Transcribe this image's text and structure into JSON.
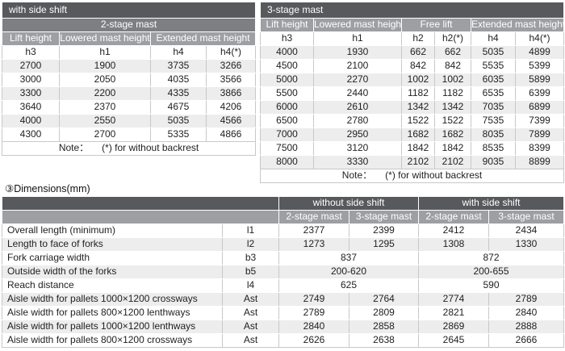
{
  "colors": {
    "dark_header": "#58595c",
    "medium_header": "#7d7f82",
    "light_header": "#9d9fa2",
    "stripe": "#ededee",
    "border": "#c7c8ca",
    "text": "#1f1f1f"
  },
  "left_table": {
    "title": "with side shift",
    "mast_title": "2-stage mast",
    "col_headers": [
      "Lift height",
      "Lowered mast height",
      "Extended mast height"
    ],
    "sub_headers": [
      "h3",
      "h1",
      "h4",
      "h4(*)"
    ],
    "rows": [
      [
        "2700",
        "1900",
        "3735",
        "3266"
      ],
      [
        "3000",
        "2050",
        "4035",
        "3566"
      ],
      [
        "3300",
        "2200",
        "4335",
        "3866"
      ],
      [
        "3640",
        "2370",
        "4675",
        "4206"
      ],
      [
        "4000",
        "2550",
        "5035",
        "4566"
      ],
      [
        "4300",
        "2700",
        "5335",
        "4866"
      ]
    ],
    "note_label": "Note：",
    "note_text": "(*) for without backrest"
  },
  "right_table": {
    "title": "3-stage mast",
    "col_headers": [
      "Lift height",
      "Lowered mast height",
      "Free lift",
      "Extended mast height"
    ],
    "sub_headers": [
      "h3",
      "h1",
      "h2",
      "h2(*)",
      "h4",
      "h4(*)"
    ],
    "rows": [
      [
        "4000",
        "1930",
        "662",
        "662",
        "5035",
        "4899"
      ],
      [
        "4500",
        "2100",
        "842",
        "842",
        "5535",
        "5399"
      ],
      [
        "5000",
        "2270",
        "1002",
        "1002",
        "6035",
        "5899"
      ],
      [
        "5500",
        "2440",
        "1182",
        "1182",
        "6535",
        "6399"
      ],
      [
        "6000",
        "2610",
        "1342",
        "1342",
        "7035",
        "6899"
      ],
      [
        "6500",
        "2780",
        "1522",
        "1522",
        "7535",
        "7399"
      ],
      [
        "7000",
        "2950",
        "1682",
        "1682",
        "8035",
        "7899"
      ],
      [
        "7500",
        "3120",
        "1842",
        "1842",
        "8535",
        "8399"
      ],
      [
        "8000",
        "3330",
        "2102",
        "2102",
        "9035",
        "8899"
      ]
    ],
    "note_label": "Note：",
    "note_text": "(*) for without backrest"
  },
  "dimensions": {
    "section_label": "③Dimensions(mm)",
    "group_headers": [
      "without side shift",
      "with side shift"
    ],
    "mast_headers": [
      "2-stage mast",
      "3-stage mast",
      "2-stage mast",
      "3-stage mast"
    ],
    "rows": [
      {
        "name": "Overall length (minimum)",
        "symbol": "l1",
        "values": [
          "2377",
          "2399",
          "2412",
          "2434"
        ]
      },
      {
        "name": "Length to face of forks",
        "symbol": "l2",
        "values": [
          "1273",
          "1295",
          "1308",
          "1330"
        ]
      },
      {
        "name": "Fork carriage width",
        "symbol": "b3",
        "values": [
          "837",
          "872"
        ]
      },
      {
        "name": "Outside width of the forks",
        "symbol": "b5",
        "values": [
          "200-620",
          "200-655"
        ]
      },
      {
        "name": "Reach distance",
        "symbol": "l4",
        "values": [
          "625",
          "590"
        ]
      },
      {
        "name": "Aisle width for pallets 1000×1200 crossways",
        "symbol": "Ast",
        "values": [
          "2749",
          "2764",
          "2774",
          "2789"
        ]
      },
      {
        "name": "Aisle width for pallets 800×1200 lenthways",
        "symbol": "Ast",
        "values": [
          "2789",
          "2809",
          "2821",
          "2840"
        ]
      },
      {
        "name": "Aisle width for pallets 1000×1200 lenthways",
        "symbol": "Ast",
        "values": [
          "2840",
          "2858",
          "2869",
          "2888"
        ]
      },
      {
        "name": "Aisle width for pallets 800×1200 crossways",
        "symbol": "Ast",
        "values": [
          "2626",
          "2638",
          "2645",
          "2666"
        ]
      }
    ]
  }
}
